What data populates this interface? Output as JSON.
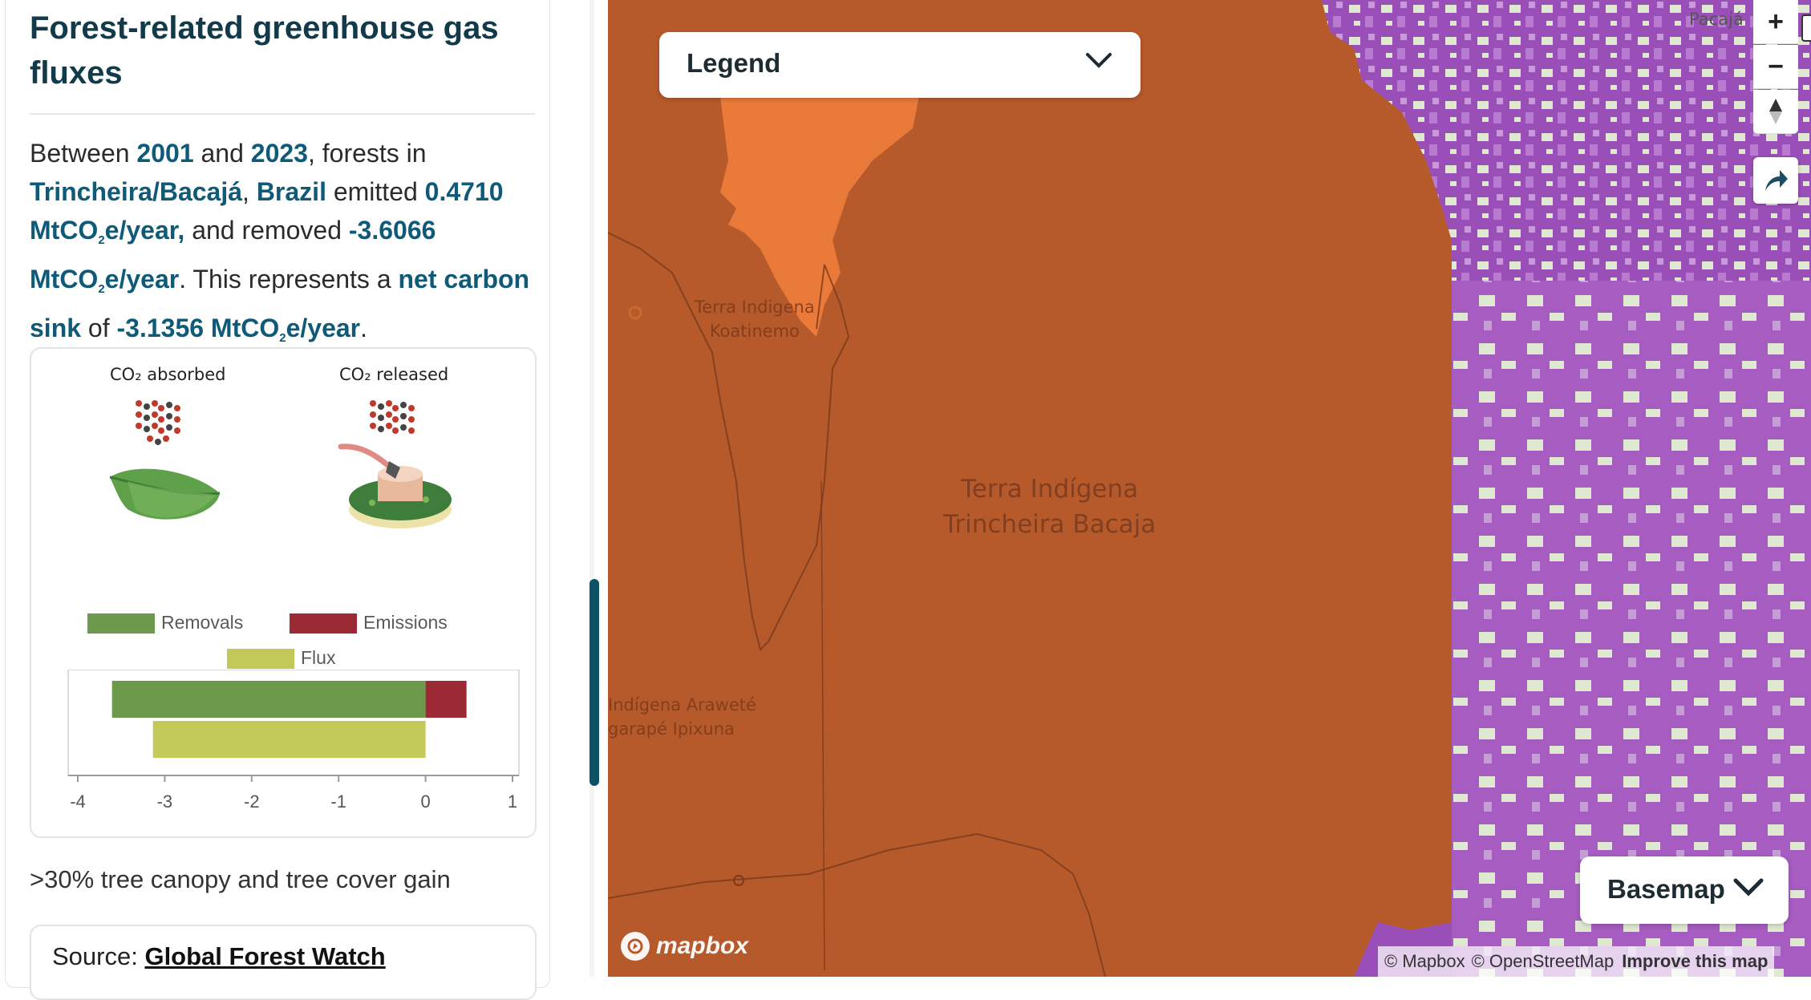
{
  "panel": {
    "title": "Forest-related greenhouse gas fluxes",
    "summary": {
      "prefix": "Between ",
      "start_year": "2001",
      "and": " and ",
      "end_year": "2023",
      "forests_in": ", forests in ",
      "region": "Trincheira/Bacajá",
      "comma": ", ",
      "country": "Brazil",
      "emitted": " emitted ",
      "emitted_value": "0.4710 MtCO",
      "emitted_sub": "2",
      "emitted_unit": "e/year,",
      "removed": " and removed ",
      "removed_value": "-3.6066 MtCO",
      "removed_sub": "2",
      "removed_unit": "e/year",
      "represents": ". This represents a ",
      "sink_label": "net carbon sink",
      "of": " of ",
      "net_value": "-3.1356 MtCO",
      "net_sub": "2",
      "net_unit": "e/year",
      "end": "."
    },
    "illustration": {
      "absorbed_label": "CO₂ absorbed",
      "released_label": "CO₂ released"
    },
    "after_chart_text": ">30% tree canopy and tree cover gain",
    "source": {
      "label": "Source: ",
      "link": "Global Forest Watch"
    }
  },
  "chart_data": {
    "type": "bar",
    "orientation": "horizontal",
    "legend": [
      "Removals",
      "Emissions",
      "Flux"
    ],
    "colors": {
      "Removals": "#6a9a4a",
      "Emissions": "#9b2a35",
      "Flux": "#c3c957"
    },
    "series": [
      {
        "name": "Removals",
        "row": 0,
        "values": [
          -3.6066
        ]
      },
      {
        "name": "Emissions",
        "row": 0,
        "values": [
          0.471
        ]
      },
      {
        "name": "Flux",
        "row": 1,
        "values": [
          -3.1356
        ]
      }
    ],
    "xlim": [
      -4,
      1
    ],
    "xticks": [
      "-4",
      "-3",
      "-2",
      "-1",
      "0",
      "1"
    ],
    "legend_position": "top"
  },
  "map": {
    "legend_label": "Legend",
    "basemap_label": "Basemap",
    "zoom_in": "+",
    "zoom_out": "−",
    "labels": {
      "koatinemo": [
        "Terra Indigena",
        "Koatinemo"
      ],
      "trincheira": [
        "Terra Indígena",
        "Trincheira Bacaja"
      ],
      "arawete": [
        "Indígena Araweté",
        "garapé Ipixuna"
      ],
      "pacaja": "Pacajá"
    },
    "mapbox_logo": "mapbox",
    "attribution": {
      "mapbox": "© Mapbox",
      "osm": "© OpenStreetMap",
      "improve": "Improve this map"
    },
    "colors": {
      "region": "#b65a2c",
      "neighbor": "#ea7a3a",
      "deforestation": "#9a4fb8",
      "blue_area": "#2f6bbf",
      "pale_forest": "#dfe8d0"
    }
  }
}
